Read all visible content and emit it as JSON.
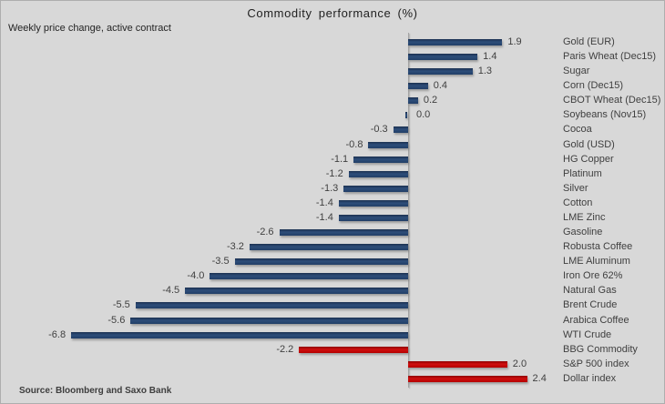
{
  "header": {
    "title": "Commodity  performance  (%)",
    "subtitle": "Weekly price change, active contract"
  },
  "footer": {
    "source": "Source: Bloomberg and Saxo Bank"
  },
  "colors": {
    "background": "#d8d8d8",
    "bar_navy": "#223f68",
    "bar_red": "#c00000",
    "axis_line": "#a3a3a3",
    "label_text": "#3f3f3f"
  },
  "chart_data": {
    "type": "bar",
    "orientation": "horizontal",
    "title": "Commodity performance (%)",
    "subtitle": "Weekly price change, active contract",
    "source": "Source: Bloomberg and Saxo Bank",
    "value_unit": "%",
    "xlim": [
      -6.8,
      2.4
    ],
    "legend": "none",
    "grid": "none",
    "categories": [
      "Gold (EUR)",
      "Paris Wheat (Dec15)",
      "Sugar",
      "Corn (Dec15)",
      "CBOT Wheat (Dec15)",
      "Soybeans (Nov15)",
      "Cocoa",
      "Gold (USD)",
      "HG Copper",
      "Platinum",
      "Silver",
      "Cotton",
      "LME Zinc",
      "Gasoline",
      "Robusta Coffee",
      "LME Aluminum",
      "Iron Ore 62%",
      "Natural Gas",
      "Brent Crude",
      "Arabica Coffee",
      "WTI Crude",
      "BBG Commodity",
      "S&P 500 index",
      "Dollar index"
    ],
    "values": [
      1.9,
      1.4,
      1.3,
      0.4,
      0.2,
      0.0,
      -0.3,
      -0.8,
      -1.1,
      -1.2,
      -1.3,
      -1.4,
      -1.4,
      -2.6,
      -3.2,
      -3.5,
      -4.0,
      -4.5,
      -5.5,
      -5.6,
      -6.8,
      -2.2,
      2.0,
      2.4
    ],
    "bar_colors": [
      "navy",
      "navy",
      "navy",
      "navy",
      "navy",
      "navy",
      "navy",
      "navy",
      "navy",
      "navy",
      "navy",
      "navy",
      "navy",
      "navy",
      "navy",
      "navy",
      "navy",
      "navy",
      "navy",
      "navy",
      "navy",
      "red",
      "red",
      "red"
    ]
  }
}
